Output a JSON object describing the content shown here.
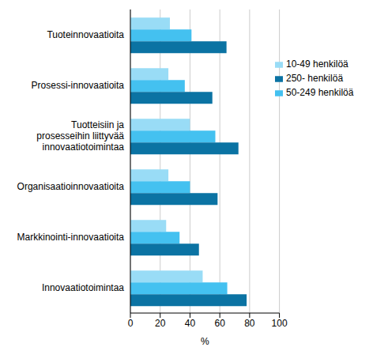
{
  "chart_data": {
    "type": "bar",
    "orientation": "horizontal",
    "categories": [
      "Tuoteinnovaatioita",
      "Prosessi-innovaatioita",
      "Tuotteisiin ja prosesseihin liittyvää innovaatiotoimintaa",
      "Organisaatioinnovaatioita",
      "Markkinointi-innovaatioita",
      "Innovaatiotoimintaa"
    ],
    "series": [
      {
        "name": "10-49 henkilöä",
        "color": "#99dcf6",
        "values": [
          26.5,
          25.5,
          40,
          25.5,
          24,
          48.5
        ]
      },
      {
        "name": "50-249 henkilöä",
        "color": "#44c1f0",
        "values": [
          41,
          36.5,
          57,
          40,
          33,
          65
        ]
      },
      {
        "name": "250- henkilöä",
        "color": "#0b73a3",
        "values": [
          64.5,
          55,
          72.5,
          58.5,
          46,
          78
        ]
      }
    ],
    "x_label": "%",
    "xlim": [
      0,
      100
    ],
    "xticks": [
      0,
      20,
      40,
      60,
      80,
      100
    ],
    "grid": true,
    "legend": "upper right"
  }
}
